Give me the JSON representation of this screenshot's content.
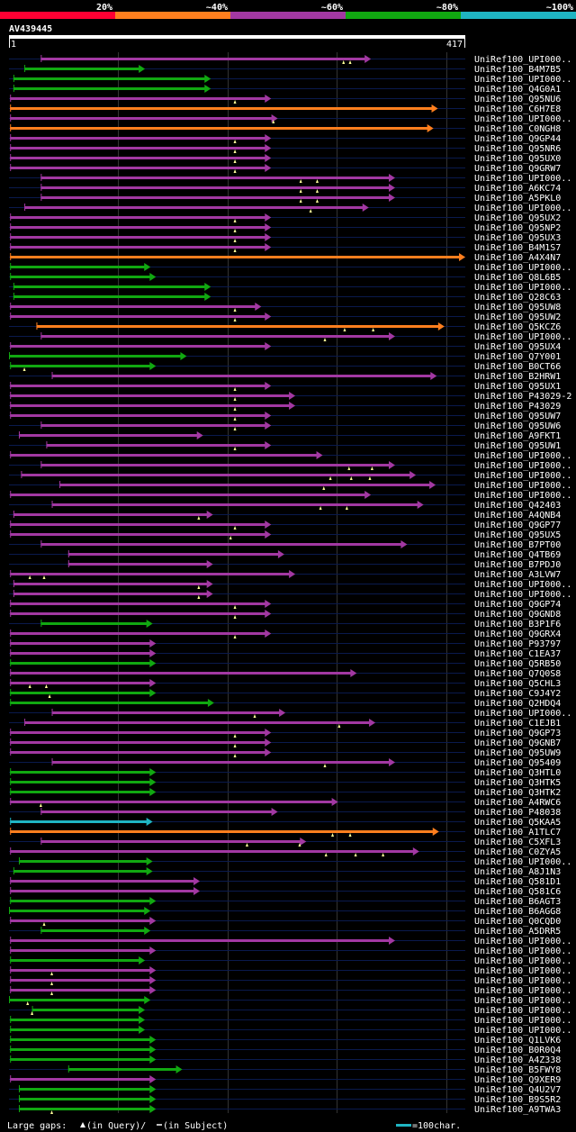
{
  "chart_data": {
    "type": "alignment-map",
    "query": "AV439445",
    "query_start": "1",
    "query_end": "417",
    "query_length": 417,
    "identity_legend": [
      {
        "label": "20%",
        "color": "#ff0033"
      },
      {
        "label": "~40%",
        "color": "#ff7f1e"
      },
      {
        "label": "~60%",
        "color": "#a238a2"
      },
      {
        "label": "~80%",
        "color": "#11a811"
      },
      {
        "label": "~100%",
        "color": "#1fb5c3"
      }
    ],
    "footer": {
      "large_gaps_text": "Large gaps:",
      "in_query_text": "(in Query)/",
      "in_subject_text": "(in Subject)",
      "scale_text": "=100char."
    },
    "hits": [
      {
        "label": "UniRef100_UPI000..",
        "identity": "~60%",
        "start": 30,
        "end": 331,
        "markers": [
          306,
          312
        ]
      },
      {
        "label": "UniRef100_B4M7B5",
        "identity": "~80%",
        "start": 15,
        "end": 125,
        "markers": []
      },
      {
        "label": "UniRef100_UPI000..",
        "identity": "~80%",
        "start": 5,
        "end": 185,
        "markers": []
      },
      {
        "label": "UniRef100_Q4G0A1",
        "identity": "~80%",
        "start": 5,
        "end": 185,
        "markers": []
      },
      {
        "label": "UniRef100_Q95NU6",
        "identity": "~60%",
        "start": 2,
        "end": 240,
        "markers": [
          207
        ]
      },
      {
        "label": "UniRef100_C6H7E8",
        "identity": "~40%",
        "start": 2,
        "end": 392,
        "markers": []
      },
      {
        "label": "UniRef100_UPI000..",
        "identity": "~60%",
        "start": 2,
        "end": 246,
        "markers": [
          242
        ]
      },
      {
        "label": "UniRef100_C0NGH8",
        "identity": "~40%",
        "start": 2,
        "end": 388,
        "markers": []
      },
      {
        "label": "UniRef100_Q9GP44",
        "identity": "~60%",
        "start": 2,
        "end": 240,
        "markers": [
          207
        ]
      },
      {
        "label": "UniRef100_Q95NR6",
        "identity": "~60%",
        "start": 2,
        "end": 240,
        "markers": [
          207
        ]
      },
      {
        "label": "UniRef100_Q95UX0",
        "identity": "~60%",
        "start": 2,
        "end": 240,
        "markers": [
          207
        ]
      },
      {
        "label": "UniRef100_Q9GRW7",
        "identity": "~60%",
        "start": 2,
        "end": 240,
        "markers": [
          207
        ]
      },
      {
        "label": "UniRef100_UPI000..",
        "identity": "~60%",
        "start": 30,
        "end": 353,
        "markers": [
          267,
          282
        ]
      },
      {
        "label": "UniRef100_A6KC74",
        "identity": "~60%",
        "start": 30,
        "end": 353,
        "markers": [
          267,
          282
        ]
      },
      {
        "label": "UniRef100_A5PKL0",
        "identity": "~60%",
        "start": 30,
        "end": 353,
        "markers": [
          267,
          282
        ]
      },
      {
        "label": "UniRef100_UPI000..",
        "identity": "~60%",
        "start": 15,
        "end": 329,
        "markers": [
          276
        ]
      },
      {
        "label": "UniRef100_Q95UX2",
        "identity": "~60%",
        "start": 2,
        "end": 240,
        "markers": [
          207
        ]
      },
      {
        "label": "UniRef100_Q95NP2",
        "identity": "~60%",
        "start": 2,
        "end": 240,
        "markers": [
          207
        ]
      },
      {
        "label": "UniRef100_Q95UX3",
        "identity": "~60%",
        "start": 2,
        "end": 240,
        "markers": [
          207
        ]
      },
      {
        "label": "UniRef100_B4M1S7",
        "identity": "~60%",
        "start": 2,
        "end": 240,
        "markers": [
          207
        ]
      },
      {
        "label": "UniRef100_A4X4N7",
        "identity": "~40%",
        "start": 2,
        "end": 417,
        "markers": []
      },
      {
        "label": "UniRef100_UPI000..",
        "identity": "~80%",
        "start": 2,
        "end": 130,
        "markers": []
      },
      {
        "label": "UniRef100_Q8L6B5",
        "identity": "~80%",
        "start": 2,
        "end": 135,
        "markers": []
      },
      {
        "label": "UniRef100_UPI000..",
        "identity": "~80%",
        "start": 5,
        "end": 185,
        "markers": []
      },
      {
        "label": "UniRef100_Q28C63",
        "identity": "~80%",
        "start": 5,
        "end": 185,
        "markers": []
      },
      {
        "label": "UniRef100_Q95UW8",
        "identity": "~60%",
        "start": 2,
        "end": 231,
        "markers": [
          207
        ]
      },
      {
        "label": "UniRef100_Q95UW2",
        "identity": "~60%",
        "start": 2,
        "end": 240,
        "markers": [
          207
        ]
      },
      {
        "label": "UniRef100_Q5KCZ6",
        "identity": "~40%",
        "start": 26,
        "end": 398,
        "markers": [
          307,
          333
        ]
      },
      {
        "label": "UniRef100_UPI000..",
        "identity": "~60%",
        "start": 30,
        "end": 353,
        "markers": [
          289
        ]
      },
      {
        "label": "UniRef100_Q95UX4",
        "identity": "~60%",
        "start": 2,
        "end": 240,
        "markers": []
      },
      {
        "label": "UniRef100_Q7Y001",
        "identity": "~80%",
        "start": 1,
        "end": 163,
        "markers": []
      },
      {
        "label": "UniRef100_B0CT66",
        "identity": "~80%",
        "start": 2,
        "end": 135,
        "markers": [
          15
        ]
      },
      {
        "label": "UniRef100_B2HRW1",
        "identity": "~60%",
        "start": 40,
        "end": 391,
        "markers": []
      },
      {
        "label": "UniRef100_Q95UX1",
        "identity": "~60%",
        "start": 2,
        "end": 240,
        "markers": [
          207
        ]
      },
      {
        "label": "UniRef100_P43029-2",
        "identity": "~60%",
        "start": 2,
        "end": 262,
        "markers": [
          207
        ]
      },
      {
        "label": "UniRef100_P43029",
        "identity": "~60%",
        "start": 2,
        "end": 262,
        "markers": [
          207
        ]
      },
      {
        "label": "UniRef100_Q95UW7",
        "identity": "~60%",
        "start": 2,
        "end": 240,
        "markers": [
          207
        ]
      },
      {
        "label": "UniRef100_Q95UW6",
        "identity": "~60%",
        "start": 30,
        "end": 240,
        "markers": [
          207
        ]
      },
      {
        "label": "UniRef100_A9FKT1",
        "identity": "~60%",
        "start": 10,
        "end": 178,
        "markers": []
      },
      {
        "label": "UniRef100_Q95UW1",
        "identity": "~60%",
        "start": 35,
        "end": 240,
        "markers": [
          207
        ]
      },
      {
        "label": "UniRef100_UPI000..",
        "identity": "~60%",
        "start": 2,
        "end": 287,
        "markers": []
      },
      {
        "label": "UniRef100_UPI000..",
        "identity": "~60%",
        "start": 30,
        "end": 353,
        "markers": [
          311,
          332
        ]
      },
      {
        "label": "UniRef100_UPI000..",
        "identity": "~60%",
        "start": 12,
        "end": 372,
        "markers": [
          294,
          313,
          330
        ]
      },
      {
        "label": "UniRef100_UPI000..",
        "identity": "~60%",
        "start": 47,
        "end": 390,
        "markers": [
          288
        ]
      },
      {
        "label": "UniRef100_UPI000..",
        "identity": "~60%",
        "start": 2,
        "end": 331,
        "markers": []
      },
      {
        "label": "UniRef100_Q42403",
        "identity": "~60%",
        "start": 40,
        "end": 379,
        "markers": [
          285,
          309
        ]
      },
      {
        "label": "UniRef100_A4QNB4",
        "identity": "~60%",
        "start": 5,
        "end": 187,
        "markers": [
          174
        ]
      },
      {
        "label": "UniRef100_Q9GP77",
        "identity": "~60%",
        "start": 2,
        "end": 240,
        "markers": [
          207
        ]
      },
      {
        "label": "UniRef100_Q95UX5",
        "identity": "~60%",
        "start": 2,
        "end": 240,
        "markers": [
          203
        ]
      },
      {
        "label": "UniRef100_B7PT00",
        "identity": "~60%",
        "start": 30,
        "end": 364,
        "markers": []
      },
      {
        "label": "UniRef100_Q4TB69",
        "identity": "~60%",
        "start": 55,
        "end": 252,
        "markers": []
      },
      {
        "label": "UniRef100_B7PDJ0",
        "identity": "~60%",
        "start": 55,
        "end": 187,
        "markers": []
      },
      {
        "label": "UniRef100_A3LVW7",
        "identity": "~60%",
        "start": 2,
        "end": 262,
        "markers": [
          20,
          33
        ]
      },
      {
        "label": "UniRef100_UPI000..",
        "identity": "~60%",
        "start": 5,
        "end": 187,
        "markers": [
          174
        ]
      },
      {
        "label": "UniRef100_UPI000..",
        "identity": "~60%",
        "start": 5,
        "end": 187,
        "markers": [
          174
        ]
      },
      {
        "label": "UniRef100_Q9GP74",
        "identity": "~60%",
        "start": 2,
        "end": 240,
        "markers": [
          207
        ]
      },
      {
        "label": "UniRef100_Q9GND8",
        "identity": "~60%",
        "start": 2,
        "end": 240,
        "markers": [
          207
        ]
      },
      {
        "label": "UniRef100_B3P1F6",
        "identity": "~80%",
        "start": 30,
        "end": 132,
        "markers": []
      },
      {
        "label": "UniRef100_Q9GRX4",
        "identity": "~60%",
        "start": 2,
        "end": 240,
        "markers": [
          207
        ]
      },
      {
        "label": "UniRef100_P93797",
        "identity": "~60%",
        "start": 2,
        "end": 135,
        "markers": []
      },
      {
        "label": "UniRef100_C1EA37",
        "identity": "~60%",
        "start": 2,
        "end": 135,
        "markers": []
      },
      {
        "label": "UniRef100_Q5RB50",
        "identity": "~80%",
        "start": 2,
        "end": 135,
        "markers": []
      },
      {
        "label": "UniRef100_Q7Q0S8",
        "identity": "~60%",
        "start": 2,
        "end": 318,
        "markers": []
      },
      {
        "label": "UniRef100_Q5CHL3",
        "identity": "~60%",
        "start": 2,
        "end": 135,
        "markers": [
          20,
          35
        ]
      },
      {
        "label": "UniRef100_C9J4Y2",
        "identity": "~80%",
        "start": 2,
        "end": 135,
        "markers": [
          38
        ]
      },
      {
        "label": "UniRef100_Q2HDQ4",
        "identity": "~80%",
        "start": 2,
        "end": 188,
        "markers": []
      },
      {
        "label": "UniRef100_UPI000..",
        "identity": "~60%",
        "start": 40,
        "end": 253,
        "markers": [
          225
        ]
      },
      {
        "label": "UniRef100_C1EJB1",
        "identity": "~60%",
        "start": 15,
        "end": 335,
        "markers": [
          302
        ]
      },
      {
        "label": "UniRef100_Q9GP73",
        "identity": "~60%",
        "start": 2,
        "end": 240,
        "markers": [
          207
        ]
      },
      {
        "label": "UniRef100_Q9GNB7",
        "identity": "~60%",
        "start": 2,
        "end": 240,
        "markers": [
          207
        ]
      },
      {
        "label": "UniRef100_Q95UW9",
        "identity": "~60%",
        "start": 2,
        "end": 240,
        "markers": [
          207
        ]
      },
      {
        "label": "UniRef100_Q95409",
        "identity": "~60%",
        "start": 40,
        "end": 353,
        "markers": [
          289
        ]
      },
      {
        "label": "UniRef100_Q3HTL0",
        "identity": "~80%",
        "start": 2,
        "end": 135,
        "markers": []
      },
      {
        "label": "UniRef100_Q3HTK5",
        "identity": "~80%",
        "start": 2,
        "end": 135,
        "markers": []
      },
      {
        "label": "UniRef100_Q3HTK2",
        "identity": "~80%",
        "start": 2,
        "end": 135,
        "markers": []
      },
      {
        "label": "UniRef100_A4RWC6",
        "identity": "~60%",
        "start": 2,
        "end": 301,
        "markers": [
          30
        ]
      },
      {
        "label": "UniRef100_P48038",
        "identity": "~60%",
        "start": 30,
        "end": 246,
        "markers": []
      },
      {
        "label": "UniRef100_Q5KAA5",
        "identity": "~100%",
        "start": 2,
        "end": 132,
        "markers": []
      },
      {
        "label": "UniRef100_A1TLC7",
        "identity": "~40%",
        "start": 2,
        "end": 393,
        "markers": [
          296,
          312
        ]
      },
      {
        "label": "UniRef100_C5XFL3",
        "identity": "~60%",
        "start": 30,
        "end": 272,
        "markers": [
          218,
          266
        ]
      },
      {
        "label": "UniRef100_C0ZYA5",
        "identity": "~60%",
        "start": 2,
        "end": 375,
        "markers": [
          290,
          317,
          342
        ]
      },
      {
        "label": "UniRef100_UPI000..",
        "identity": "~80%",
        "start": 10,
        "end": 132,
        "markers": []
      },
      {
        "label": "UniRef100_A8J1N3",
        "identity": "~80%",
        "start": 5,
        "end": 132,
        "markers": []
      },
      {
        "label": "UniRef100_Q581D1",
        "identity": "~60%",
        "start": 2,
        "end": 175,
        "markers": []
      },
      {
        "label": "UniRef100_Q581C6",
        "identity": "~60%",
        "start": 2,
        "end": 175,
        "markers": []
      },
      {
        "label": "UniRef100_B6AGT3",
        "identity": "~80%",
        "start": 2,
        "end": 135,
        "markers": []
      },
      {
        "label": "UniRef100_B6AGG8",
        "identity": "~80%",
        "start": 1,
        "end": 130,
        "markers": []
      },
      {
        "label": "UniRef100_Q0CQD0",
        "identity": "~60%",
        "start": 2,
        "end": 135,
        "markers": [
          33
        ]
      },
      {
        "label": "UniRef100_A5DRR5",
        "identity": "~80%",
        "start": 30,
        "end": 130,
        "markers": []
      },
      {
        "label": "UniRef100_UPI000..",
        "identity": "~60%",
        "start": 2,
        "end": 353,
        "markers": []
      },
      {
        "label": "UniRef100_UPI000..",
        "identity": "~60%",
        "start": 2,
        "end": 135,
        "markers": []
      },
      {
        "label": "UniRef100_UPI000..",
        "identity": "~80%",
        "start": 2,
        "end": 125,
        "markers": []
      },
      {
        "label": "UniRef100_UPI000..",
        "identity": "~60%",
        "start": 2,
        "end": 135,
        "markers": [
          40
        ]
      },
      {
        "label": "UniRef100_UPI000..",
        "identity": "~60%",
        "start": 2,
        "end": 135,
        "markers": [
          40
        ]
      },
      {
        "label": "UniRef100_UPI000..",
        "identity": "~60%",
        "start": 2,
        "end": 135,
        "markers": [
          40
        ]
      },
      {
        "label": "UniRef100_UPI000..",
        "identity": "~80%",
        "start": 1,
        "end": 130,
        "markers": [
          18
        ]
      },
      {
        "label": "UniRef100_UPI000..",
        "identity": "~80%",
        "start": 22,
        "end": 125,
        "markers": [
          22
        ]
      },
      {
        "label": "UniRef100_UPI000..",
        "identity": "~80%",
        "start": 2,
        "end": 125,
        "markers": []
      },
      {
        "label": "UniRef100_UPI000..",
        "identity": "~80%",
        "start": 2,
        "end": 125,
        "markers": []
      },
      {
        "label": "UniRef100_Q1LVK6",
        "identity": "~80%",
        "start": 2,
        "end": 135,
        "markers": []
      },
      {
        "label": "UniRef100_B0R0Q4",
        "identity": "~80%",
        "start": 2,
        "end": 135,
        "markers": []
      },
      {
        "label": "UniRef100_A4Z338",
        "identity": "~80%",
        "start": 2,
        "end": 135,
        "markers": []
      },
      {
        "label": "UniRef100_B5FWY8",
        "identity": "~80%",
        "start": 55,
        "end": 159,
        "markers": []
      },
      {
        "label": "UniRef100_Q9XER9",
        "identity": "~60%",
        "start": 2,
        "end": 135,
        "markers": []
      },
      {
        "label": "UniRef100_Q4U2V7",
        "identity": "~80%",
        "start": 10,
        "end": 135,
        "markers": []
      },
      {
        "label": "UniRef100_B9S5R2",
        "identity": "~80%",
        "start": 10,
        "end": 135,
        "markers": []
      },
      {
        "label": "UniRef100_A9TWA3",
        "identity": "~80%",
        "start": 10,
        "end": 135,
        "markers": [
          40
        ]
      }
    ]
  }
}
